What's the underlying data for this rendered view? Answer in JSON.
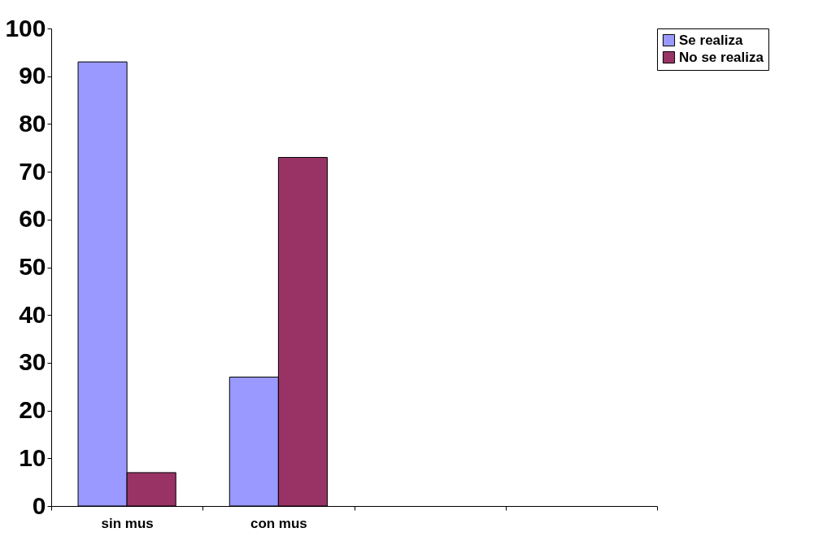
{
  "chart_data": {
    "type": "bar",
    "categories": [
      "sin mus",
      "con mus",
      null,
      null
    ],
    "series": [
      {
        "name": "Se realiza",
        "color": "#9999ff",
        "values": [
          93,
          27,
          null,
          null
        ]
      },
      {
        "name": "No se realiza",
        "color": "#993366",
        "values": [
          7,
          73,
          null,
          null
        ]
      }
    ],
    "ylim": [
      0,
      100
    ],
    "yticks": [
      0,
      10,
      20,
      30,
      40,
      50,
      60,
      70,
      80,
      90,
      100
    ],
    "grid": false,
    "legend": "right"
  }
}
